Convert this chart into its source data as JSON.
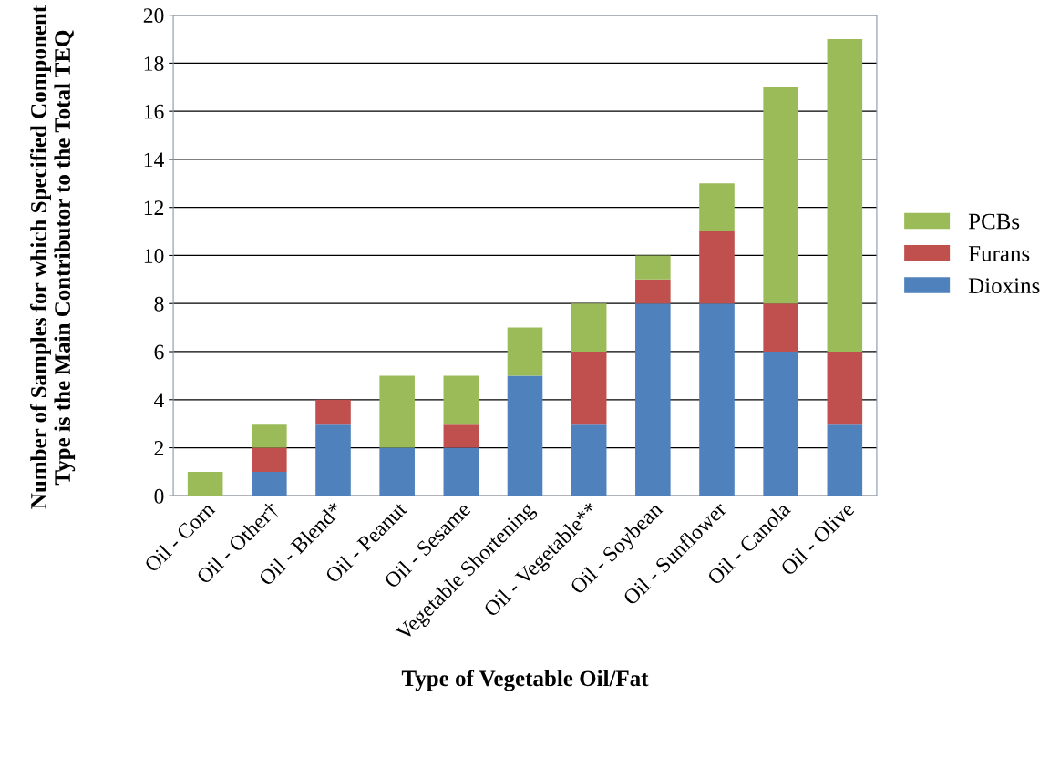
{
  "chart_data": {
    "type": "bar",
    "stacked": true,
    "xlabel": "Type of Vegetable Oil/Fat",
    "ylabel": "Number of Samples for which Specified Component Type is the Main Contributor to the Total TEQ",
    "categories": [
      "Oil - Corn",
      "Oil - Other†",
      "Oil - Blend*",
      "Oil - Peanut",
      "Oil - Sesame",
      "Vegetable Shortening",
      "Oil - Vegetable**",
      "Oil - Soybean",
      "Oil - Sunflower",
      "Oil - Canola",
      "Oil - Olive"
    ],
    "series": [
      {
        "name": "Dioxins",
        "color": "#4f81bd",
        "values": [
          0,
          1,
          3,
          2,
          2,
          5,
          3,
          8,
          8,
          6,
          3
        ]
      },
      {
        "name": "Furans",
        "color": "#c0504d",
        "values": [
          0,
          1,
          1,
          0,
          1,
          0,
          3,
          1,
          3,
          2,
          3
        ]
      },
      {
        "name": "PCBs",
        "color": "#9bbb59",
        "values": [
          1,
          1,
          0,
          3,
          2,
          2,
          2,
          1,
          2,
          9,
          13
        ]
      }
    ],
    "ylim": [
      0,
      20
    ],
    "yticks": [
      0,
      2,
      4,
      6,
      8,
      10,
      12,
      14,
      16,
      18,
      20
    ],
    "grid": "y",
    "legend": "right"
  }
}
